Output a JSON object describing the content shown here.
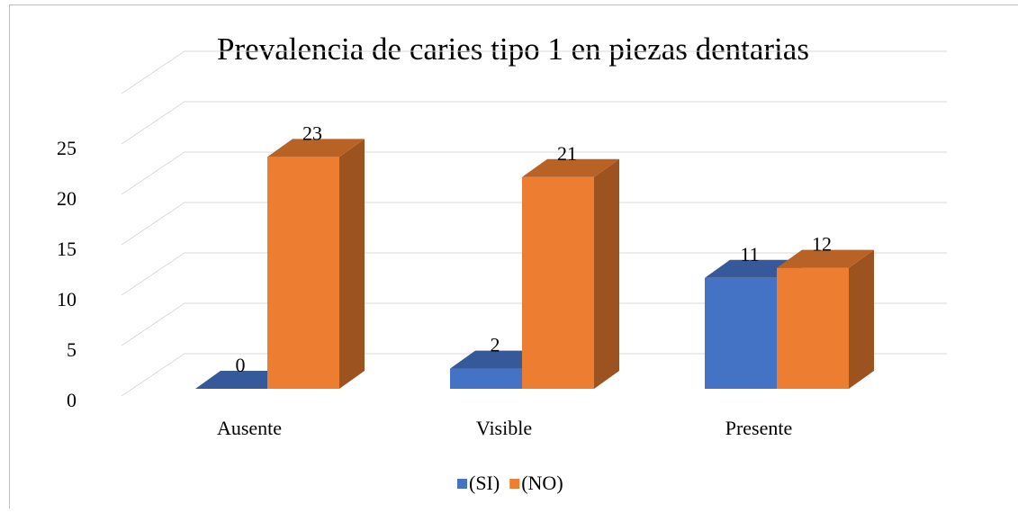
{
  "chart_data": {
    "type": "bar3d",
    "title": "Prevalencia de caries tipo 1 en piezas dentarias",
    "categories": [
      "Ausente",
      "Visible",
      "Presente"
    ],
    "series": [
      {
        "name": "(SI)",
        "color": "#4472c4",
        "values": [
          0,
          2,
          11
        ]
      },
      {
        "name": "(NO)",
        "color": "#ed7d31",
        "values": [
          23,
          21,
          12
        ]
      }
    ],
    "ylim": [
      0,
      30
    ],
    "yticks": [
      0,
      5,
      10,
      15,
      20,
      25
    ],
    "grid": true,
    "legend": "bottom"
  }
}
